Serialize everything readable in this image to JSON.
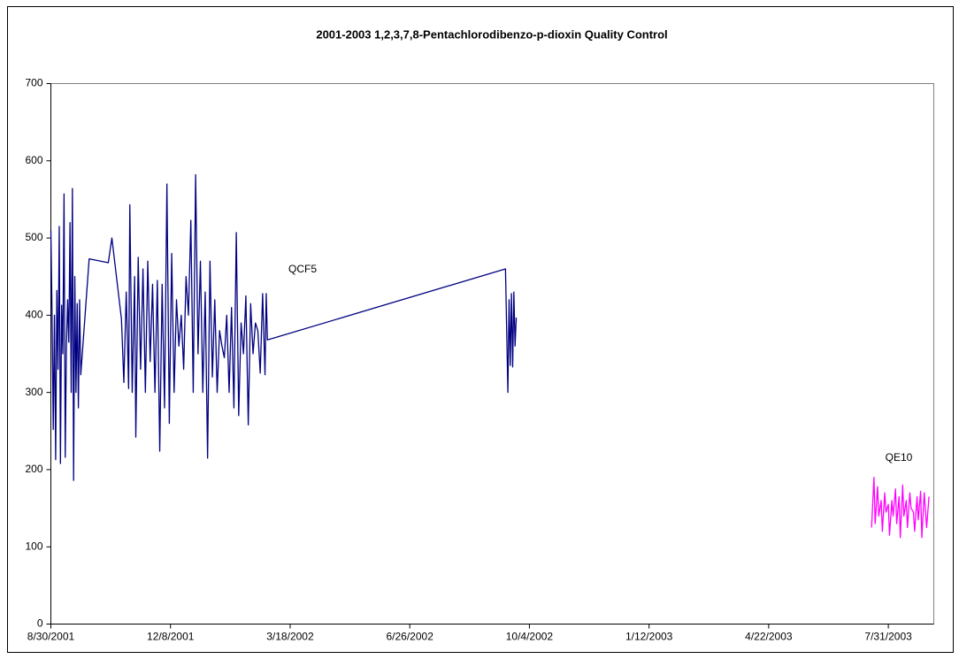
{
  "chart_data": {
    "type": "line",
    "title": "2001-2003 1,2,3,7,8-Pentachlorodibenzo-p-dioxin  Quality Control",
    "xlim": [
      "8/30/2001",
      "9/7/2003"
    ],
    "xticks": [
      "8/30/2001",
      "12/8/2001",
      "3/18/2002",
      "6/26/2002",
      "10/4/2002",
      "1/12/2003",
      "4/22/2003",
      "7/31/2003"
    ],
    "ylim": [
      0,
      700
    ],
    "yticks": [
      0,
      100,
      200,
      300,
      400,
      500,
      600,
      700
    ],
    "grid": false,
    "series": [
      {
        "name": "QCF5",
        "color": "#000080",
        "x": [
          "8/30/2001",
          "8/31/2001",
          "9/1/2001",
          "9/2/2001",
          "9/3/2001",
          "9/4/2001",
          "9/5/2001",
          "9/6/2001",
          "9/7/2001",
          "9/8/2001",
          "9/9/2001",
          "9/10/2001",
          "9/11/2001",
          "9/12/2001",
          "9/13/2001",
          "9/14/2001",
          "9/15/2001",
          "9/16/2001",
          "9/17/2001",
          "9/18/2001",
          "9/19/2001",
          "9/20/2001",
          "9/21/2001",
          "9/22/2001",
          "9/23/2001",
          "9/24/2001",
          "10/1/2001",
          "10/17/2001",
          "10/20/2001",
          "10/28/2001",
          "10/30/2001",
          "11/1/2001",
          "11/3/2001",
          "11/4/2001",
          "11/6/2001",
          "11/8/2001",
          "11/9/2001",
          "11/11/2001",
          "11/13/2001",
          "11/15/2001",
          "11/17/2001",
          "11/19/2001",
          "11/21/2001",
          "11/23/2001",
          "11/25/2001",
          "11/27/2001",
          "11/29/2001",
          "12/1/2001",
          "12/3/2001",
          "12/5/2001",
          "12/7/2001",
          "12/9/2001",
          "12/11/2001",
          "12/13/2001",
          "12/15/2001",
          "12/17/2001",
          "12/19/2001",
          "12/21/2001",
          "12/23/2001",
          "12/25/2001",
          "12/27/2001",
          "12/29/2001",
          "12/31/2001",
          "1/2/2002",
          "1/4/2002",
          "1/6/2002",
          "1/8/2002",
          "1/10/2002",
          "1/12/2002",
          "1/14/2002",
          "1/16/2002",
          "1/18/2002",
          "1/20/2002",
          "1/22/2002",
          "1/24/2002",
          "1/26/2002",
          "1/28/2002",
          "1/30/2002",
          "2/1/2002",
          "2/3/2002",
          "2/5/2002",
          "2/7/2002",
          "2/9/2002",
          "2/11/2002",
          "2/13/2002",
          "2/15/2002",
          "2/17/2002",
          "2/19/2002",
          "2/21/2002",
          "2/23/2002",
          "2/25/2002",
          "2/26/2002",
          "2/27/2002",
          "9/14/2002",
          "9/16/2002",
          "9/17/2002",
          "9/18/2002",
          "9/19/2002",
          "9/20/2002",
          "9/21/2002",
          "9/22/2002",
          "9/23/2002"
        ],
        "values": [
          510,
          400,
          252,
          400,
          213,
          432,
          330,
          515,
          208,
          413,
          350,
          557,
          216,
          360,
          420,
          365,
          520,
          300,
          564,
          186,
          450,
          300,
          415,
          280,
          420,
          323,
          473,
          468,
          500,
          395,
          313,
          430,
          305,
          543,
          300,
          450,
          242,
          475,
          330,
          460,
          300,
          470,
          340,
          440,
          300,
          445,
          224,
          440,
          280,
          570,
          260,
          480,
          300,
          420,
          360,
          400,
          330,
          450,
          400,
          523,
          300,
          582,
          350,
          470,
          300,
          430,
          215,
          470,
          320,
          420,
          300,
          380,
          360,
          345,
          400,
          300,
          410,
          280,
          507,
          270,
          390,
          350,
          425,
          258,
          415,
          350,
          390,
          380,
          325,
          428,
          323,
          428,
          368,
          460,
          300,
          420,
          335,
          428,
          333,
          430,
          360,
          397
        ]
      },
      {
        "name": "QE10",
        "color": "#FF00FF",
        "x": [
          "7/17/2003",
          "7/19/2003",
          "7/20/2003",
          "7/22/2003",
          "7/23/2003",
          "7/25/2003",
          "7/26/2003",
          "7/28/2003",
          "7/29/2003",
          "7/31/2003",
          "8/1/2003",
          "8/3/2003",
          "8/4/2003",
          "8/6/2003",
          "8/7/2003",
          "8/9/2003",
          "8/10/2003",
          "8/12/2003",
          "8/13/2003",
          "8/15/2003",
          "8/16/2003",
          "8/18/2003",
          "8/19/2003",
          "8/21/2003",
          "8/22/2003",
          "8/24/2003",
          "8/25/2003",
          "8/27/2003",
          "8/28/2003",
          "8/30/2003",
          "9/1/2003",
          "9/3/2003"
        ],
        "values": [
          125,
          190,
          130,
          178,
          140,
          160,
          120,
          170,
          145,
          155,
          115,
          160,
          140,
          175,
          130,
          165,
          112,
          180,
          140,
          160,
          125,
          170,
          150,
          145,
          120,
          165,
          135,
          172,
          112,
          170,
          125,
          165
        ]
      }
    ]
  }
}
